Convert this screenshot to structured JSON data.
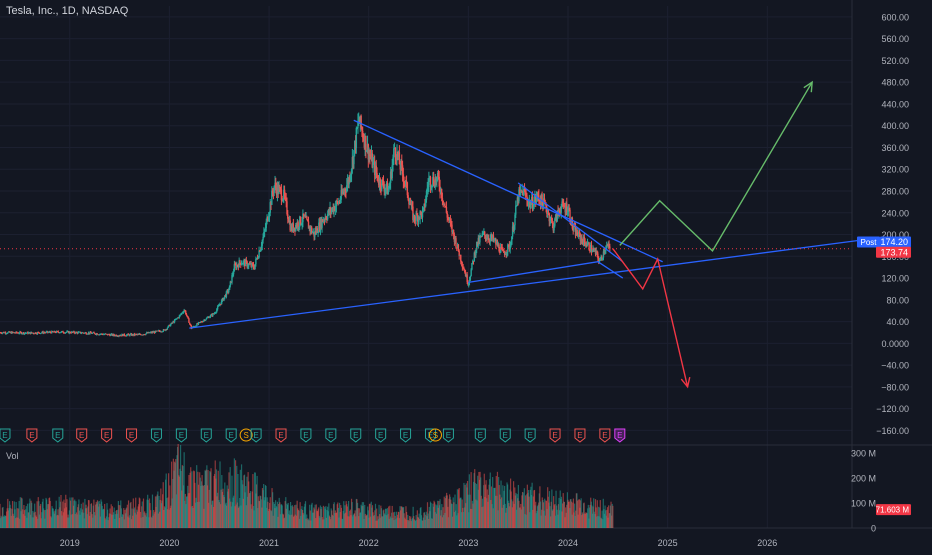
{
  "header": {
    "title": "Tesla, Inc., 1D, NASDAQ"
  },
  "colors": {
    "background": "#131722",
    "axis_text": "#b2b5be",
    "candle_up": "#26a69a",
    "candle_down": "#ef5350",
    "trendline": "#2962ff",
    "projection_bull": "#66bb6a",
    "projection_bear": "#f23645",
    "post_badge": "#2962ff",
    "last_badge": "#f23645"
  },
  "chart_data": {
    "type": "candlestick",
    "title": "Tesla, Inc., 1D, NASDAQ",
    "price_axis": {
      "ylim": [
        -185,
        620
      ],
      "ticks": [
        600,
        560,
        520,
        480,
        440,
        400,
        360,
        320,
        280,
        240,
        200,
        160,
        120,
        80,
        40,
        0,
        -40,
        -80,
        -120,
        -160
      ],
      "tick_labels": [
        "600.00",
        "560.00",
        "520.00",
        "480.00",
        "440.00",
        "400.00",
        "360.00",
        "320.00",
        "280.00",
        "240.00",
        "200.00",
        "160.00",
        "120.00",
        "80.00",
        "40.00",
        "0.0000",
        "−40.00",
        "−80.00",
        "−120.00",
        "−160.00"
      ]
    },
    "time_axis": {
      "xlim": [
        2018.3,
        2026.85
      ],
      "ticks": [
        2019,
        2020,
        2021,
        2022,
        2023,
        2024,
        2025,
        2026
      ],
      "tick_labels": [
        "2019",
        "2020",
        "2021",
        "2022",
        "2023",
        "2024",
        "2025",
        "2026"
      ]
    },
    "price_path": [
      [
        2018.3,
        20
      ],
      [
        2018.6,
        19
      ],
      [
        2018.9,
        21
      ],
      [
        2019.2,
        19
      ],
      [
        2019.45,
        15
      ],
      [
        2019.7,
        16
      ],
      [
        2019.95,
        24
      ],
      [
        2020.1,
        50
      ],
      [
        2020.15,
        62
      ],
      [
        2020.22,
        28
      ],
      [
        2020.45,
        55
      ],
      [
        2020.6,
        100
      ],
      [
        2020.65,
        140
      ],
      [
        2020.72,
        150
      ],
      [
        2020.85,
        140
      ],
      [
        2020.95,
        200
      ],
      [
        2021.05,
        290
      ],
      [
        2021.15,
        270
      ],
      [
        2021.22,
        210
      ],
      [
        2021.35,
        230
      ],
      [
        2021.45,
        200
      ],
      [
        2021.55,
        230
      ],
      [
        2021.7,
        260
      ],
      [
        2021.8,
        300
      ],
      [
        2021.85,
        350
      ],
      [
        2021.9,
        410
      ],
      [
        2022.0,
        350
      ],
      [
        2022.1,
        300
      ],
      [
        2022.2,
        280
      ],
      [
        2022.26,
        360
      ],
      [
        2022.36,
        300
      ],
      [
        2022.45,
        230
      ],
      [
        2022.55,
        240
      ],
      [
        2022.6,
        300
      ],
      [
        2022.7,
        300
      ],
      [
        2022.78,
        240
      ],
      [
        2022.85,
        200
      ],
      [
        2022.95,
        140
      ],
      [
        2023.0,
        110
      ],
      [
        2023.08,
        180
      ],
      [
        2023.15,
        200
      ],
      [
        2023.25,
        190
      ],
      [
        2023.35,
        165
      ],
      [
        2023.42,
        180
      ],
      [
        2023.5,
        270
      ],
      [
        2023.55,
        280
      ],
      [
        2023.62,
        255
      ],
      [
        2023.7,
        270
      ],
      [
        2023.78,
        250
      ],
      [
        2023.85,
        215
      ],
      [
        2023.92,
        250
      ],
      [
        2024.0,
        250
      ],
      [
        2024.05,
        210
      ],
      [
        2024.12,
        195
      ],
      [
        2024.2,
        180
      ],
      [
        2024.28,
        165
      ],
      [
        2024.32,
        150
      ],
      [
        2024.38,
        180
      ],
      [
        2024.42,
        173.74
      ]
    ],
    "trendlines": [
      {
        "points": [
          [
            2020.2,
            28
          ],
          [
            2026.95,
            190
          ]
        ]
      },
      {
        "points": [
          [
            2021.85,
            410
          ],
          [
            2024.95,
            150
          ]
        ]
      },
      {
        "points": [
          [
            2023.5,
            295
          ],
          [
            2024.55,
            150
          ]
        ]
      },
      {
        "points": [
          [
            2023.0,
            112
          ],
          [
            2024.3,
            150
          ],
          [
            2024.55,
            120
          ]
        ]
      }
    ],
    "projections": [
      {
        "direction": "bullish",
        "points": [
          [
            2024.52,
            180
          ],
          [
            2024.92,
            262
          ],
          [
            2025.45,
            170
          ],
          [
            2026.45,
            480
          ]
        ]
      },
      {
        "direction": "bearish",
        "points": [
          [
            2024.45,
            174
          ],
          [
            2024.75,
            100
          ],
          [
            2024.9,
            155
          ],
          [
            2025.2,
            -80
          ]
        ]
      }
    ],
    "price_labels": {
      "post_label": "Post",
      "post_value": "174.20",
      "post_price": 174.2,
      "last_value": "173.74",
      "last_price": 173.74
    },
    "volume": {
      "label": "Vol",
      "ylim": [
        0,
        320
      ],
      "ticks": [
        300,
        200,
        100,
        0
      ],
      "tick_labels": [
        "300 M",
        "200 M",
        "100 M",
        "0"
      ],
      "last_value": "71.603 M",
      "last_volume": 71.603,
      "profile": [
        [
          2018.3,
          95
        ],
        [
          2019.0,
          110
        ],
        [
          2019.45,
          85
        ],
        [
          2019.9,
          120
        ],
        [
          2020.1,
          280
        ],
        [
          2020.3,
          200
        ],
        [
          2020.6,
          235
        ],
        [
          2020.9,
          170
        ],
        [
          2021.1,
          110
        ],
        [
          2021.5,
          75
        ],
        [
          2021.85,
          95
        ],
        [
          2022.2,
          75
        ],
        [
          2022.55,
          80
        ],
        [
          2022.95,
          145
        ],
        [
          2023.1,
          215
        ],
        [
          2023.4,
          165
        ],
        [
          2023.7,
          140
        ],
        [
          2024.0,
          120
        ],
        [
          2024.3,
          100
        ],
        [
          2024.45,
          85
        ]
      ]
    },
    "events": [
      {
        "x": 2018.35,
        "type": "E",
        "tone": "up"
      },
      {
        "x": 2018.62,
        "type": "E",
        "tone": "down"
      },
      {
        "x": 2018.88,
        "type": "E",
        "tone": "up"
      },
      {
        "x": 2019.12,
        "type": "E",
        "tone": "down"
      },
      {
        "x": 2019.37,
        "type": "E",
        "tone": "down"
      },
      {
        "x": 2019.62,
        "type": "E",
        "tone": "down"
      },
      {
        "x": 2019.87,
        "type": "E",
        "tone": "up"
      },
      {
        "x": 2020.12,
        "type": "E",
        "tone": "up"
      },
      {
        "x": 2020.37,
        "type": "E",
        "tone": "up"
      },
      {
        "x": 2020.62,
        "type": "E",
        "tone": "up"
      },
      {
        "x": 2020.77,
        "type": "S",
        "tone": "split"
      },
      {
        "x": 2020.87,
        "type": "E",
        "tone": "up"
      },
      {
        "x": 2021.12,
        "type": "E",
        "tone": "down"
      },
      {
        "x": 2021.37,
        "type": "E",
        "tone": "up"
      },
      {
        "x": 2021.62,
        "type": "E",
        "tone": "up"
      },
      {
        "x": 2021.87,
        "type": "E",
        "tone": "up"
      },
      {
        "x": 2022.12,
        "type": "E",
        "tone": "up"
      },
      {
        "x": 2022.37,
        "type": "E",
        "tone": "up"
      },
      {
        "x": 2022.62,
        "type": "E",
        "tone": "up"
      },
      {
        "x": 2022.67,
        "type": "S",
        "tone": "split"
      },
      {
        "x": 2022.8,
        "type": "E",
        "tone": "up"
      },
      {
        "x": 2023.12,
        "type": "E",
        "tone": "up"
      },
      {
        "x": 2023.37,
        "type": "E",
        "tone": "up"
      },
      {
        "x": 2023.62,
        "type": "E",
        "tone": "up"
      },
      {
        "x": 2023.87,
        "type": "E",
        "tone": "down"
      },
      {
        "x": 2024.12,
        "type": "E",
        "tone": "down"
      },
      {
        "x": 2024.37,
        "type": "E",
        "tone": "down"
      },
      {
        "x": 2024.52,
        "type": "E",
        "tone": "next"
      }
    ]
  }
}
